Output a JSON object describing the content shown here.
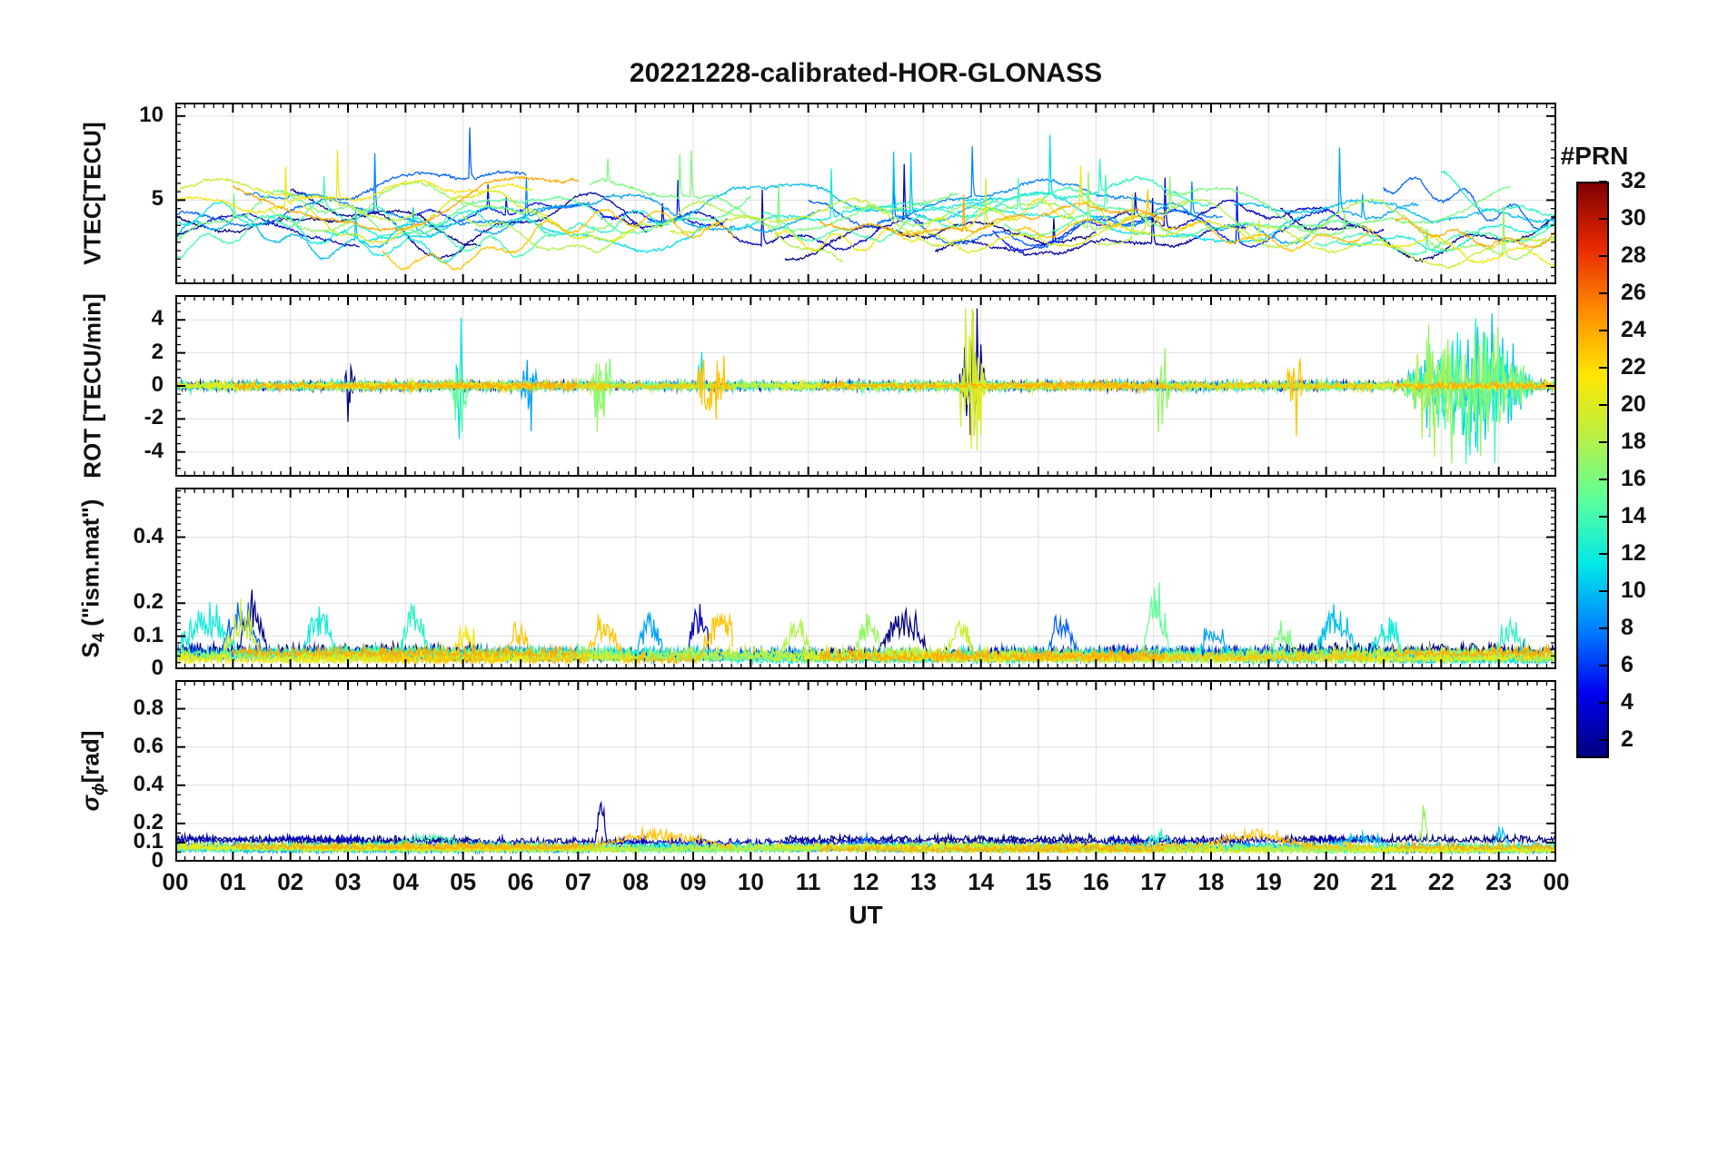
{
  "chart_data": {
    "type": "line",
    "title": "20221228-calibrated-HOR-GLONASS",
    "xlabel": "UT",
    "grid": true,
    "x_range_hours": [
      0,
      24
    ],
    "x_tick_labels": [
      "00",
      "01",
      "02",
      "03",
      "04",
      "05",
      "06",
      "07",
      "08",
      "09",
      "10",
      "11",
      "12",
      "13",
      "14",
      "15",
      "16",
      "17",
      "18",
      "19",
      "20",
      "21",
      "22",
      "23",
      "00"
    ],
    "x_minor_step_minutes": 10,
    "panels": [
      {
        "name": "vtec",
        "ylabel": "VTEC[TECU]",
        "ylabel_parts": [
          {
            "text": "VTEC[TECU]"
          }
        ],
        "ylim": [
          0,
          10.8
        ],
        "ytick_values": [
          0,
          5,
          10
        ],
        "ytick_labels": [
          "",
          "5",
          "10"
        ],
        "minor_step": 0.5,
        "gen": "vtec",
        "typical_value_range": [
          1,
          8
        ]
      },
      {
        "name": "rot",
        "ylabel": "ROT [TECU/min]",
        "ylabel_parts": [
          {
            "text": "ROT [TECU/min]"
          }
        ],
        "ylim": [
          -5.5,
          5.5
        ],
        "ytick_values": [
          -4,
          -2,
          0,
          2,
          4
        ],
        "ytick_labels": [
          "-4",
          "-2",
          "0",
          "2",
          "4"
        ],
        "minor_step": 0.5,
        "gen": "rot",
        "baseline": 0,
        "typical_noise": 0.3,
        "bursts": [
          {
            "t0": 2.9,
            "t1": 3.15,
            "amp": 1.5,
            "prns": [
              1
            ]
          },
          {
            "t0": 4.8,
            "t1": 5.1,
            "amp": 2.2,
            "prns": [
              11,
              15
            ]
          },
          {
            "t0": 5.9,
            "t1": 6.3,
            "amp": 1.6,
            "prns": [
              9
            ]
          },
          {
            "t0": 7.2,
            "t1": 7.6,
            "amp": 2.5,
            "prns": [
              16,
              17
            ]
          },
          {
            "t0": 9.0,
            "t1": 9.6,
            "amp": 1.8,
            "prns": [
              23,
              11
            ]
          },
          {
            "t0": 13.6,
            "t1": 14.1,
            "amp": 3.8,
            "prns": [
              1,
              20,
              19
            ]
          },
          {
            "t0": 17.0,
            "t1": 17.3,
            "amp": 2.8,
            "prns": [
              17
            ]
          },
          {
            "t0": 19.3,
            "t1": 19.6,
            "amp": 2.2,
            "prns": [
              23
            ]
          },
          {
            "t0": 21.3,
            "t1": 23.6,
            "amp": 2.6,
            "prns": [
              17,
              10,
              12,
              18,
              14
            ]
          }
        ]
      },
      {
        "name": "s4",
        "ylabel": "S4 (\"ism.mat\")",
        "ylabel_parts": [
          {
            "text": "S"
          },
          {
            "text": "4",
            "sub": true
          },
          {
            "text": " (\"ism.mat\")"
          }
        ],
        "ylim": [
          0,
          0.55
        ],
        "ytick_values": [
          0,
          0.1,
          0.2,
          0.4
        ],
        "ytick_labels": [
          "0",
          "0.1",
          "0.2",
          "0.4"
        ],
        "minor_step": 0.02,
        "gen": "s4",
        "baseline": 0.04,
        "bursts": [
          {
            "t0": 0.0,
            "t1": 1.1,
            "amp": 0.17,
            "prns": [
              12
            ]
          },
          {
            "t0": 0.8,
            "t1": 1.5,
            "amp": 0.2,
            "prns": [
              19,
              7
            ]
          },
          {
            "t0": 1.1,
            "t1": 1.6,
            "amp": 0.22,
            "prns": [
              1
            ]
          },
          {
            "t0": 2.2,
            "t1": 2.8,
            "amp": 0.17,
            "prns": [
              12
            ]
          },
          {
            "t0": 3.9,
            "t1": 4.4,
            "amp": 0.2,
            "prns": [
              13
            ]
          },
          {
            "t0": 4.8,
            "t1": 5.3,
            "amp": 0.13,
            "prns": [
              21
            ]
          },
          {
            "t0": 5.7,
            "t1": 6.2,
            "amp": 0.14,
            "prns": [
              23
            ]
          },
          {
            "t0": 7.1,
            "t1": 7.8,
            "amp": 0.16,
            "prns": [
              23
            ]
          },
          {
            "t0": 8.0,
            "t1": 8.5,
            "amp": 0.15,
            "prns": [
              9
            ]
          },
          {
            "t0": 8.9,
            "t1": 9.3,
            "amp": 0.22,
            "prns": [
              3
            ]
          },
          {
            "t0": 9.1,
            "t1": 9.9,
            "amp": 0.18,
            "prns": [
              23
            ]
          },
          {
            "t0": 10.5,
            "t1": 11.1,
            "amp": 0.15,
            "prns": [
              18
            ]
          },
          {
            "t0": 11.8,
            "t1": 12.3,
            "amp": 0.16,
            "prns": [
              17
            ]
          },
          {
            "t0": 12.2,
            "t1": 13.1,
            "amp": 0.18,
            "prns": [
              1
            ]
          },
          {
            "t0": 13.4,
            "t1": 13.9,
            "amp": 0.12,
            "prns": [
              19
            ]
          },
          {
            "t0": 15.1,
            "t1": 15.7,
            "amp": 0.18,
            "prns": [
              7
            ]
          },
          {
            "t0": 16.8,
            "t1": 17.3,
            "amp": 0.27,
            "prns": [
              15
            ]
          },
          {
            "t0": 17.8,
            "t1": 18.3,
            "amp": 0.12,
            "prns": [
              9
            ]
          },
          {
            "t0": 19.0,
            "t1": 19.5,
            "amp": 0.12,
            "prns": [
              16
            ]
          },
          {
            "t0": 19.8,
            "t1": 20.6,
            "amp": 0.2,
            "prns": [
              10
            ]
          },
          {
            "t0": 20.7,
            "t1": 21.4,
            "amp": 0.16,
            "prns": [
              12
            ]
          },
          {
            "t0": 22.9,
            "t1": 23.5,
            "amp": 0.15,
            "prns": [
              13
            ]
          }
        ]
      },
      {
        "name": "sigma-phi",
        "ylabel": "σϕ[rad]",
        "ylabel_parts": [
          {
            "text": "σ",
            "italic": true
          },
          {
            "text": "ϕ",
            "sub": true,
            "italic": true
          },
          {
            "text": "[rad]"
          }
        ],
        "ylim": [
          0,
          0.95
        ],
        "ytick_values": [
          0,
          0.1,
          0.2,
          0.4,
          0.6,
          0.8
        ],
        "ytick_labels": [
          "0",
          "0.1",
          "0.2",
          "0.4",
          "0.6",
          "0.8"
        ],
        "minor_step": 0.05,
        "gen": "sigma",
        "baseline": 0.08,
        "bursts": [
          {
            "t0": 3.8,
            "t1": 5.0,
            "amp": 0.08,
            "prns": [
              14
            ]
          },
          {
            "t0": 7.2,
            "t1": 9.6,
            "amp": 0.1,
            "prns": [
              23
            ]
          },
          {
            "t0": 7.3,
            "t1": 7.5,
            "amp": 0.27,
            "prns": [
              2
            ]
          },
          {
            "t0": 11.5,
            "t1": 12.5,
            "amp": 0.06,
            "prns": [
              7
            ]
          },
          {
            "t0": 16.8,
            "t1": 17.4,
            "amp": 0.08,
            "prns": [
              13
            ]
          },
          {
            "t0": 17.9,
            "t1": 19.6,
            "amp": 0.1,
            "prns": [
              23
            ]
          },
          {
            "t0": 20.0,
            "t1": 21.2,
            "amp": 0.07,
            "prns": [
              10
            ]
          },
          {
            "t0": 21.6,
            "t1": 21.8,
            "amp": 0.26,
            "prns": [
              17
            ]
          },
          {
            "t0": 22.9,
            "t1": 23.2,
            "amp": 0.12,
            "prns": [
              10
            ]
          }
        ]
      }
    ],
    "colorbar": {
      "title": "#PRN",
      "min": 1,
      "max": 32,
      "ticks": [
        2,
        4,
        6,
        8,
        10,
        12,
        14,
        16,
        18,
        20,
        22,
        24,
        26,
        28,
        30,
        32
      ],
      "colormap": [
        "#00007F",
        "#0000F0",
        "#0080FF",
        "#00E8E8",
        "#58FF9E",
        "#B8F046",
        "#FFE600",
        "#FF8C00",
        "#E82800",
        "#7F0000"
      ]
    },
    "series": [
      {
        "prn": 1,
        "arcs": [
          [
            0,
            5.3
          ],
          [
            10.6,
            16.0
          ],
          [
            19.2,
            24
          ]
        ]
      },
      {
        "prn": 2,
        "arcs": [
          [
            2.0,
            8.2
          ],
          [
            13.2,
            18.6
          ]
        ]
      },
      {
        "prn": 3,
        "arcs": [
          [
            0,
            3.2
          ],
          [
            7.4,
            13.0
          ],
          [
            16.2,
            21.0
          ]
        ]
      },
      {
        "prn": 5,
        "arcs": [
          [
            4.2,
            9.6
          ],
          [
            14.2,
            20.0
          ]
        ]
      },
      {
        "prn": 7,
        "arcs": [
          [
            0,
            6.1
          ],
          [
            11.0,
            17.0
          ],
          [
            21.0,
            24
          ]
        ]
      },
      {
        "prn": 8,
        "arcs": [
          [
            1.2,
            7.2
          ],
          [
            12.2,
            18.2
          ]
        ]
      },
      {
        "prn": 9,
        "arcs": [
          [
            5.2,
            11.2
          ],
          [
            15.6,
            21.6
          ]
        ]
      },
      {
        "prn": 10,
        "arcs": [
          [
            0,
            4.6
          ],
          [
            8.2,
            14.2
          ],
          [
            18.4,
            24
          ]
        ]
      },
      {
        "prn": 11,
        "arcs": [
          [
            3.2,
            9.2
          ],
          [
            13.6,
            19.6
          ]
        ]
      },
      {
        "prn": 12,
        "arcs": [
          [
            0,
            5.0
          ],
          [
            9.6,
            15.6
          ],
          [
            20.2,
            24
          ]
        ]
      },
      {
        "prn": 13,
        "arcs": [
          [
            2.6,
            8.6
          ],
          [
            12.0,
            18.0
          ],
          [
            22.0,
            24
          ]
        ]
      },
      {
        "prn": 14,
        "arcs": [
          [
            0,
            6.6
          ],
          [
            10.2,
            16.2
          ],
          [
            19.8,
            24
          ]
        ]
      },
      {
        "prn": 15,
        "arcs": [
          [
            4.0,
            10.0
          ],
          [
            14.4,
            20.6
          ]
        ]
      },
      {
        "prn": 16,
        "arcs": [
          [
            0,
            3.6
          ],
          [
            7.2,
            13.6
          ],
          [
            17.2,
            23.2
          ]
        ]
      },
      {
        "prn": 17,
        "arcs": [
          [
            1.6,
            7.6
          ],
          [
            11.6,
            17.6
          ],
          [
            21.6,
            24
          ]
        ]
      },
      {
        "prn": 18,
        "arcs": [
          [
            5.0,
            11.6
          ],
          [
            16.0,
            22.2
          ]
        ]
      },
      {
        "prn": 19,
        "arcs": [
          [
            0,
            4.2
          ],
          [
            8.6,
            14.6
          ],
          [
            18.6,
            24
          ]
        ]
      },
      {
        "prn": 20,
        "arcs": [
          [
            2.2,
            8.0
          ],
          [
            12.6,
            19.0
          ]
        ]
      },
      {
        "prn": 21,
        "arcs": [
          [
            0,
            6.2
          ],
          [
            10.4,
            16.6
          ],
          [
            20.6,
            24
          ]
        ]
      },
      {
        "prn": 23,
        "arcs": [
          [
            3.6,
            9.7
          ],
          [
            14.6,
            20.8
          ]
        ]
      },
      {
        "prn": 24,
        "arcs": [
          [
            1.0,
            7.0
          ],
          [
            11.2,
            17.2
          ],
          [
            21.2,
            24
          ]
        ]
      }
    ]
  }
}
